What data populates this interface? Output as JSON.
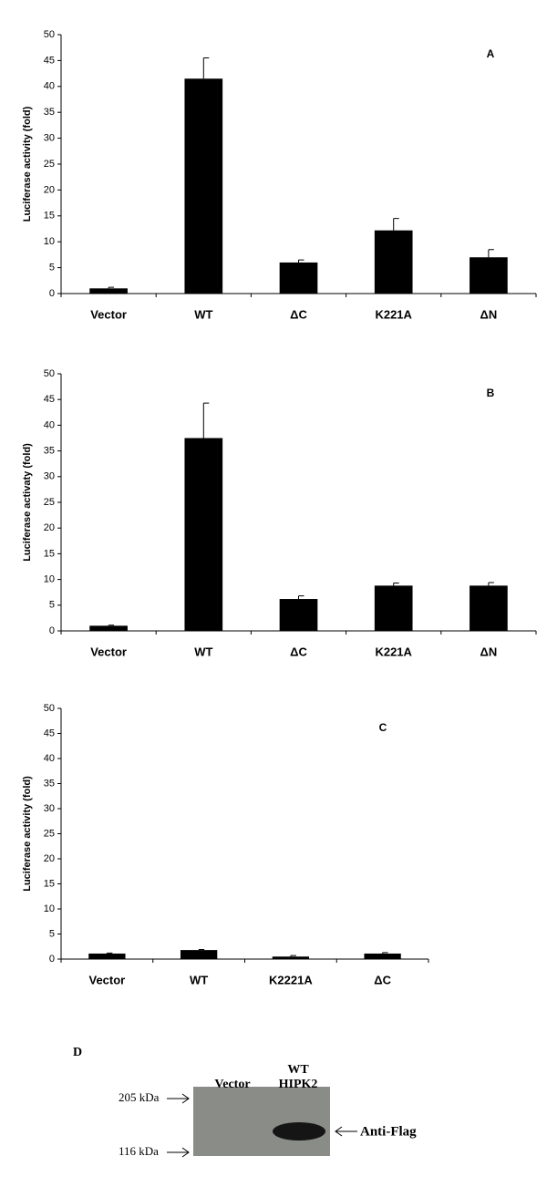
{
  "chart_data": [
    {
      "type": "bar",
      "panel_label": "A",
      "y_label": "Luciferase activity (fold)",
      "categories": [
        "Vector",
        "WT",
        "ΔC",
        "K221A",
        "ΔN"
      ],
      "values": [
        1.0,
        41.5,
        6.0,
        12.2,
        7.0
      ],
      "errors": [
        0.2,
        4.0,
        0.5,
        2.3,
        1.5
      ],
      "color": "#000000",
      "ylim": [
        0,
        50
      ],
      "yticks": [
        0,
        5,
        10,
        15,
        20,
        25,
        30,
        35,
        40,
        45,
        50
      ],
      "grid": false
    },
    {
      "type": "bar",
      "panel_label": "B",
      "y_label": "Luciferase activaty (fold)",
      "categories": [
        "Vector",
        "WT",
        "ΔC",
        "K221A",
        "ΔN"
      ],
      "values": [
        1.0,
        37.5,
        6.2,
        8.8,
        8.8
      ],
      "errors": [
        0.1,
        6.8,
        0.6,
        0.5,
        0.6
      ],
      "color": "#000000",
      "ylim": [
        0,
        50
      ],
      "yticks": [
        0,
        5,
        10,
        15,
        20,
        25,
        30,
        35,
        40,
        45,
        50
      ],
      "grid": false
    },
    {
      "type": "bar",
      "panel_label": "C",
      "y_label": "Luciferase activity (fold)",
      "categories": [
        "Vector",
        "WT",
        "K2221A",
        "ΔC"
      ],
      "values": [
        1.1,
        1.8,
        0.5,
        1.1
      ],
      "errors": [
        0.1,
        0.1,
        0.2,
        0.2
      ],
      "color": "#000000",
      "ylim": [
        0,
        50
      ],
      "yticks": [
        0,
        5,
        10,
        15,
        20,
        25,
        30,
        35,
        40,
        45,
        50
      ],
      "grid": false
    }
  ],
  "blot": {
    "panel_label": "D",
    "lanes": [
      {
        "lines": [
          "Vector"
        ]
      },
      {
        "lines": [
          "WT",
          "HIPK2"
        ]
      }
    ],
    "markers": [
      "205 kDa",
      "116 kDa"
    ],
    "antibody": "Anti-Flag"
  }
}
